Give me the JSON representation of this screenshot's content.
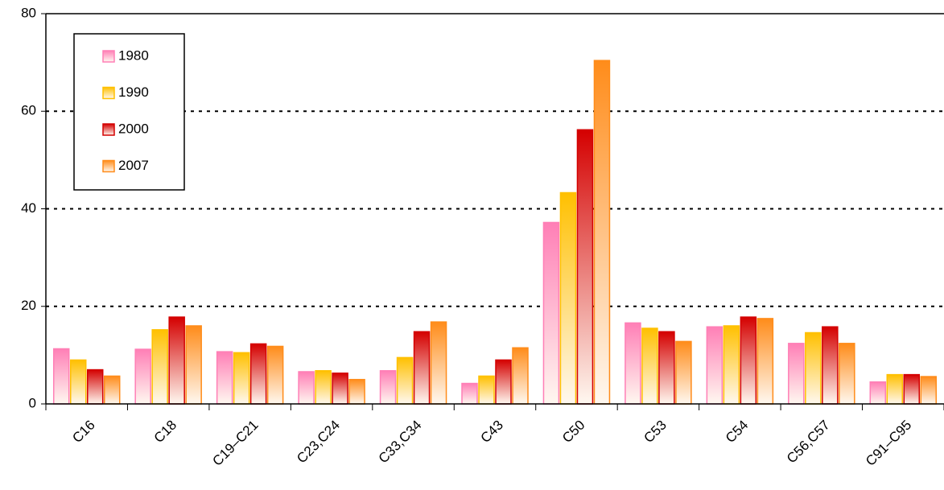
{
  "chart_data": {
    "type": "bar",
    "categories": [
      "C16",
      "C18",
      "C19–C21",
      "C23,C24",
      "C33,C34",
      "C43",
      "C50",
      "C53",
      "C54",
      "C56,C57",
      "C91–C95"
    ],
    "series": [
      {
        "name": "1980",
        "color": "#ff7fb6",
        "values": [
          11.3,
          11.2,
          10.7,
          6.6,
          6.8,
          4.2,
          37.2,
          16.6,
          15.8,
          12.4,
          4.5
        ]
      },
      {
        "name": "1990",
        "color": "#ffc000",
        "values": [
          9.0,
          15.2,
          10.5,
          6.8,
          9.5,
          5.7,
          43.3,
          15.5,
          16.0,
          14.6,
          6.0
        ]
      },
      {
        "name": "2000",
        "color": "#d40000",
        "values": [
          7.0,
          17.8,
          12.3,
          6.3,
          14.8,
          9.0,
          56.2,
          14.8,
          17.8,
          15.8,
          6.0
        ]
      },
      {
        "name": "2007",
        "color": "#ff8c1a",
        "values": [
          5.7,
          16.0,
          11.8,
          5.0,
          16.8,
          11.5,
          70.4,
          12.8,
          17.5,
          12.4,
          5.6
        ]
      }
    ],
    "ylim": [
      0,
      80
    ],
    "yticks": [
      0,
      20,
      40,
      60,
      80
    ],
    "grid": true,
    "legend": "upper left"
  }
}
